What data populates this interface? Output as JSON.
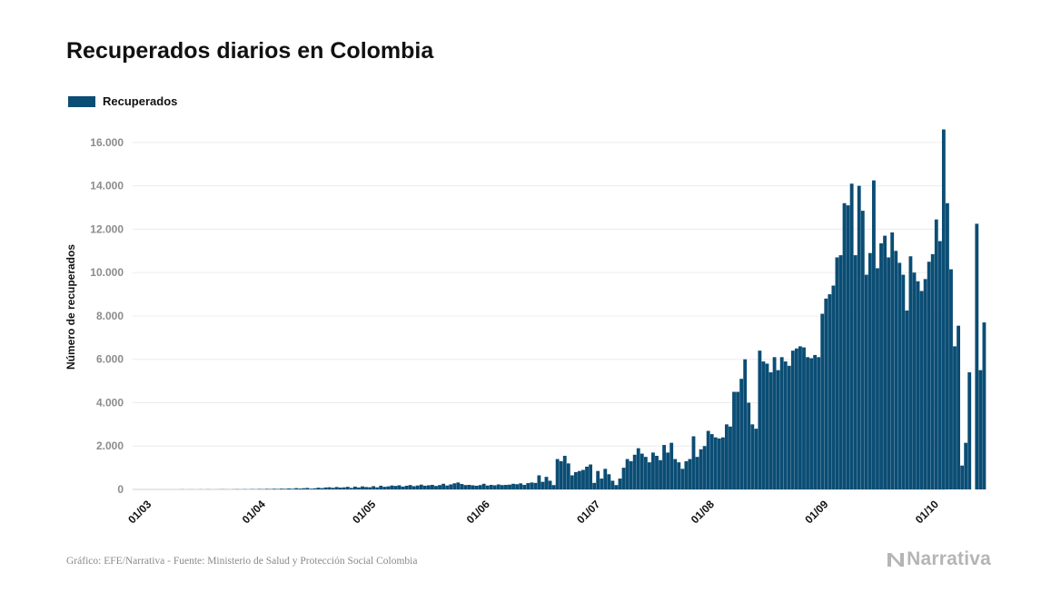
{
  "title": "Recuperados diarios en Colombia",
  "legend": {
    "label": "Recuperados",
    "color": "#0b4d74"
  },
  "source": "Gráfico: EFE/Narrativa - Fuente: Ministerio de Salud y Protección Social Colombia",
  "logo": {
    "text": "Narrativa",
    "icon": "narrativa-logo-icon"
  },
  "chart_data": {
    "type": "bar",
    "title": "Recuperados diarios en Colombia",
    "ylabel": "Número de recuperados",
    "xlabel": "",
    "ylim": [
      0,
      17000
    ],
    "yticks": [
      {
        "value": 0,
        "label": "0"
      },
      {
        "value": 2000,
        "label": "2.000"
      },
      {
        "value": 4000,
        "label": "4.000"
      },
      {
        "value": 6000,
        "label": "6.000"
      },
      {
        "value": 8000,
        "label": "8.000"
      },
      {
        "value": 10000,
        "label": "10.000"
      },
      {
        "value": 12000,
        "label": "12.000"
      },
      {
        "value": 14000,
        "label": "14.000"
      },
      {
        "value": 16000,
        "label": "16.000"
      }
    ],
    "xlim": [
      "2020-02-26",
      "2020-10-04"
    ],
    "xticks": [
      {
        "date": "2020-03-01",
        "label": "01/03"
      },
      {
        "date": "2020-04-01",
        "label": "01/04"
      },
      {
        "date": "2020-05-01",
        "label": "01/05"
      },
      {
        "date": "2020-06-01",
        "label": "01/06"
      },
      {
        "date": "2020-07-01",
        "label": "01/07"
      },
      {
        "date": "2020-08-01",
        "label": "01/08"
      },
      {
        "date": "2020-09-01",
        "label": "01/09"
      },
      {
        "date": "2020-10-01",
        "label": "01/10"
      }
    ],
    "grid": true,
    "legend_position": "top-left",
    "series": [
      {
        "name": "Recuperados",
        "color": "#0b4d74",
        "start_date": "2020-03-10",
        "values": [
          5,
          0,
          3,
          2,
          0,
          4,
          1,
          6,
          2,
          3,
          5,
          8,
          4,
          2,
          7,
          10,
          5,
          12,
          6,
          15,
          9,
          20,
          14,
          25,
          18,
          30,
          22,
          35,
          28,
          45,
          30,
          60,
          40,
          55,
          70,
          35,
          50,
          80,
          60,
          90,
          100,
          75,
          110,
          85,
          95,
          120,
          70,
          130,
          90,
          140,
          110,
          100,
          150,
          95,
          170,
          120,
          140,
          180,
          160,
          190,
          130,
          170,
          200,
          150,
          180,
          220,
          170,
          190,
          210,
          160,
          200,
          260,
          180,
          230,
          280,
          320,
          250,
          200,
          210,
          190,
          170,
          200,
          260,
          180,
          210,
          190,
          230,
          200,
          210,
          220,
          260,
          240,
          280,
          210,
          290,
          320,
          300,
          650,
          350,
          580,
          400,
          200,
          1400,
          1300,
          1550,
          1200,
          650,
          800,
          850,
          900,
          1050,
          1150,
          300,
          850,
          500,
          950,
          700,
          400,
          200,
          500,
          1000,
          1400,
          1300,
          1600,
          1900,
          1650,
          1500,
          1250,
          1700,
          1550,
          1350,
          2050,
          1700,
          2150,
          1400,
          1250,
          950,
          1300,
          1400,
          2450,
          1500,
          1850,
          2000,
          2700,
          2550,
          2400,
          2350,
          2400,
          3000,
          2900,
          4500,
          4500,
          5100,
          6000,
          4000,
          3000,
          2800,
          6400,
          5900,
          5800,
          5400,
          6100,
          5500,
          6100,
          5900,
          5700,
          6400,
          6500,
          6600,
          6550,
          6100,
          6050,
          6200,
          6100,
          8100,
          8800,
          9000,
          9400,
          10700,
          10800,
          13200,
          13100,
          14100,
          10800,
          14000,
          12850,
          9900,
          10900,
          14250,
          10200,
          11350,
          11700,
          10700,
          11850,
          11000,
          10450,
          9900,
          8250,
          10750,
          10000,
          9600,
          9150,
          9700,
          10500,
          10850,
          12450,
          11450,
          16600,
          13200,
          10150,
          6600,
          7550,
          1100,
          2150,
          5400,
          0,
          12250,
          5500,
          7700
        ]
      }
    ]
  }
}
